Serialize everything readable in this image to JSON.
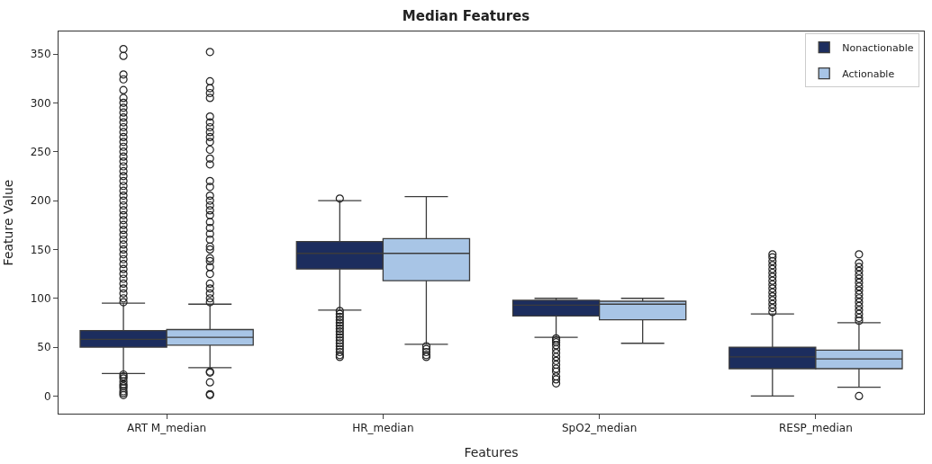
{
  "chart_data": {
    "type": "box",
    "title": "Median Features",
    "xlabel": "Features",
    "ylabel": "Feature Value",
    "categories": [
      "ART M_median",
      "HR_median",
      "SpO2_median",
      "RESP_median"
    ],
    "ylim": [
      -18,
      373
    ],
    "yticks": [
      0,
      50,
      100,
      150,
      200,
      250,
      300,
      350
    ],
    "legend": "top right",
    "marker": "circle",
    "series": [
      {
        "name": "Nonactionable",
        "color": "#1c2d5e",
        "boxes": [
          {
            "low": 23,
            "q1": 50,
            "median": 58,
            "q3": 67,
            "high": 95,
            "outliers": [
              96,
              100,
              105,
              110,
              115,
              120,
              125,
              130,
              135,
              140,
              145,
              150,
              155,
              160,
              165,
              170,
              175,
              180,
              185,
              190,
              195,
              200,
              205,
              210,
              215,
              220,
              225,
              230,
              235,
              240,
              245,
              250,
              255,
              260,
              265,
              270,
              275,
              280,
              285,
              290,
              295,
              300,
              305,
              313,
              324,
              329,
              348,
              355,
              22,
              20,
              18,
              15,
              12,
              10,
              8,
              5,
              3,
              1
            ]
          },
          {
            "low": 88,
            "q1": 130,
            "median": 146,
            "q3": 158,
            "high": 200,
            "outliers": [
              202,
              87,
              84,
              81,
              78,
              75,
              72,
              69,
              66,
              63,
              60,
              57,
              54,
              51,
              48,
              45,
              42,
              40
            ]
          },
          {
            "low": 60,
            "q1": 82,
            "median": 93,
            "q3": 98,
            "high": 100,
            "outliers": [
              59,
              57,
              55,
              52,
              48,
              44,
              40,
              36,
              32,
              28,
              25,
              20,
              17,
              13
            ]
          },
          {
            "low": 0,
            "q1": 28,
            "median": 40,
            "q3": 50,
            "high": 84,
            "outliers": [
              86,
              90,
              94,
              98,
              102,
              106,
              110,
              114,
              118,
              122,
              126,
              130,
              134,
              138,
              142,
              145
            ]
          }
        ]
      },
      {
        "name": "Actionable",
        "color": "#a8c5e6",
        "boxes": [
          {
            "low": 29,
            "q1": 52,
            "median": 60,
            "q3": 68,
            "high": 94,
            "outliers": [
              96,
              100,
              105,
              110,
              115,
              125,
              132,
              138,
              141,
              150,
              153,
              160,
              166,
              172,
              178,
              185,
              190,
              195,
              200,
              205,
              214,
              220,
              237,
              243,
              252,
              260,
              265,
              270,
              275,
              280,
              286,
              305,
              310,
              315,
              322,
              352,
              25,
              24,
              14,
              2,
              1
            ]
          },
          {
            "low": 53,
            "q1": 118,
            "median": 146,
            "q3": 161,
            "high": 204,
            "outliers": [
              51,
              48,
              45,
              42,
              40
            ]
          },
          {
            "low": 54,
            "q1": 78,
            "median": 94,
            "q3": 97,
            "high": 100
          },
          {
            "low": 9,
            "q1": 28,
            "median": 38,
            "q3": 47,
            "high": 75,
            "outliers": [
              77,
              80,
              84,
              88,
              92,
              96,
              100,
              104,
              108,
              112,
              116,
              120,
              124,
              128,
              132,
              136,
              145,
              0
            ]
          }
        ]
      }
    ]
  }
}
